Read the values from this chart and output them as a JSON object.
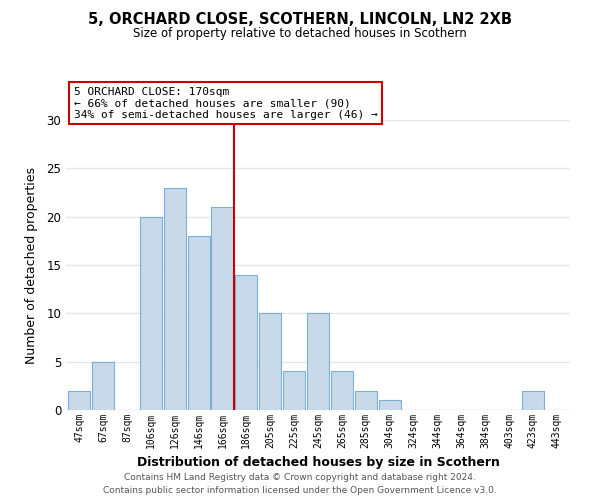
{
  "title": "5, ORCHARD CLOSE, SCOTHERN, LINCOLN, LN2 2XB",
  "subtitle": "Size of property relative to detached houses in Scothern",
  "xlabel": "Distribution of detached houses by size in Scothern",
  "ylabel": "Number of detached properties",
  "bar_labels": [
    "47sqm",
    "67sqm",
    "87sqm",
    "106sqm",
    "126sqm",
    "146sqm",
    "166sqm",
    "186sqm",
    "205sqm",
    "225sqm",
    "245sqm",
    "265sqm",
    "285sqm",
    "304sqm",
    "324sqm",
    "344sqm",
    "364sqm",
    "384sqm",
    "403sqm",
    "423sqm",
    "443sqm"
  ],
  "bar_values": [
    2,
    5,
    0,
    20,
    23,
    18,
    21,
    14,
    10,
    4,
    10,
    4,
    2,
    1,
    0,
    0,
    0,
    0,
    0,
    2,
    0
  ],
  "bar_color": "#c8daea",
  "bar_edge_color": "#7bafd4",
  "highlight_line_index": 6,
  "highlight_line_color": "#cc0000",
  "ylim": [
    0,
    30
  ],
  "yticks": [
    0,
    5,
    10,
    15,
    20,
    25,
    30
  ],
  "annotation_title": "5 ORCHARD CLOSE: 170sqm",
  "annotation_line1": "← 66% of detached houses are smaller (90)",
  "annotation_line2": "34% of semi-detached houses are larger (46) →",
  "annotation_box_color": "#ffffff",
  "annotation_box_edge_color": "#cc0000",
  "footer_line1": "Contains HM Land Registry data © Crown copyright and database right 2024.",
  "footer_line2": "Contains public sector information licensed under the Open Government Licence v3.0.",
  "background_color": "#ffffff",
  "grid_color": "#e0e8f0"
}
